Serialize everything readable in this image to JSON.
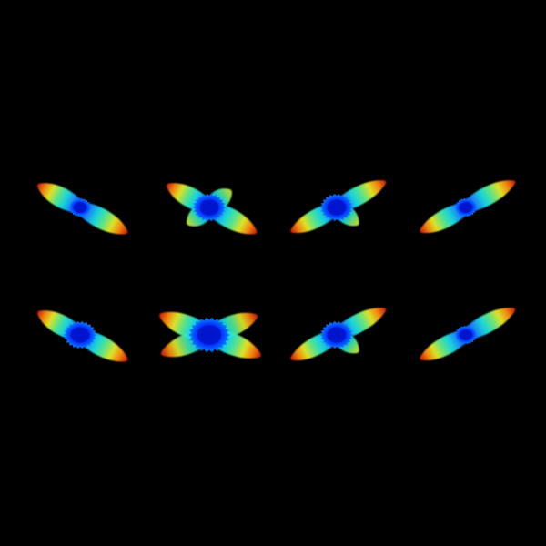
{
  "scene": {
    "background": "#000000",
    "colormap": "jet",
    "glyph_type": "orientation-distribution-glyph",
    "grid": {
      "rows": 2,
      "columns": 4
    },
    "glyphs": [
      {
        "row": 1,
        "col": 1,
        "orientation": "descending-right",
        "center_blob": "small",
        "lobes": 2
      },
      {
        "row": 1,
        "col": 2,
        "orientation": "descending-right",
        "center_blob": "medium",
        "lobes": 4
      },
      {
        "row": 1,
        "col": 3,
        "orientation": "ascending-right",
        "center_blob": "medium",
        "lobes": 3
      },
      {
        "row": 1,
        "col": 4,
        "orientation": "ascending-right",
        "center_blob": "small",
        "lobes": 2
      },
      {
        "row": 2,
        "col": 1,
        "orientation": "descending-right",
        "center_blob": "medium",
        "lobes": 2
      },
      {
        "row": 2,
        "col": 2,
        "orientation": "crossing",
        "center_blob": "large",
        "lobes": 4
      },
      {
        "row": 2,
        "col": 3,
        "orientation": "ascending-right",
        "center_blob": "medium",
        "lobes": 3
      },
      {
        "row": 2,
        "col": 4,
        "orientation": "ascending-right",
        "center_blob": "small",
        "lobes": 2
      }
    ]
  }
}
